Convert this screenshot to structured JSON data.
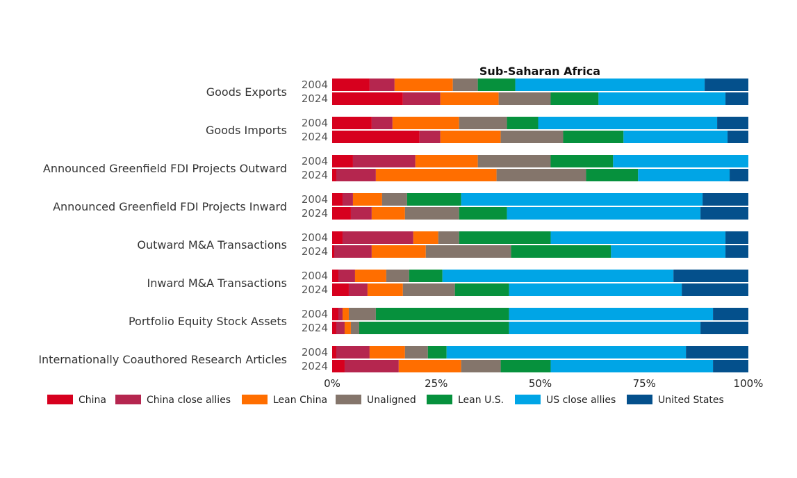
{
  "chart_data": {
    "type": "bar",
    "orientation": "horizontal",
    "stacked": "percent",
    "title": "Sub-Saharan Africa",
    "xlim": [
      0,
      100
    ],
    "x_ticks": [
      "0%",
      "25%",
      "50%",
      "75%",
      "100%"
    ],
    "grid": false,
    "legend_position": "bottom",
    "categories": [
      "Goods Exports",
      "Goods Imports",
      "Announced Greenfield FDI Projects Outward",
      "Announced Greenfield FDI Projects Inward",
      "Outward M&A Transactions",
      "Inward M&A Transactions",
      "Portfolio Equity Stock Assets",
      "Internationally Coauthored Research Articles"
    ],
    "years": [
      "2004",
      "2024"
    ],
    "series": [
      {
        "name": "China",
        "color": "#d7001e"
      },
      {
        "name": "China close allies",
        "color": "#b5264f"
      },
      {
        "name": "Lean China",
        "color": "#ff6e00"
      },
      {
        "name": "Unaligned",
        "color": "#84756b"
      },
      {
        "name": "Lean U.S.",
        "color": "#06913d"
      },
      {
        "name": "US close allies",
        "color": "#00a5e6"
      },
      {
        "name": "United States",
        "color": "#04508c"
      }
    ],
    "values": [
      [
        [
          9,
          6,
          14,
          6,
          9,
          45.5,
          10.5
        ],
        [
          17,
          9,
          14,
          12.5,
          11.5,
          30.5,
          5.5
        ]
      ],
      [
        [
          9.5,
          5,
          16,
          11.5,
          7.5,
          43,
          7.5
        ],
        [
          21,
          5,
          14.5,
          15,
          14.5,
          25,
          5
        ]
      ],
      [
        [
          5,
          15,
          15,
          17.5,
          15,
          32.5,
          0
        ],
        [
          1,
          9.5,
          29,
          21.5,
          12.5,
          22,
          4.5
        ]
      ],
      [
        [
          2.5,
          2.5,
          7,
          6,
          13,
          58,
          11
        ],
        [
          4.5,
          5,
          8,
          13,
          11.5,
          46.5,
          11.5
        ]
      ],
      [
        [
          2.5,
          17,
          6,
          5,
          22,
          42,
          5.5
        ],
        [
          0.5,
          9,
          13,
          20.5,
          24,
          27.5,
          5.5
        ]
      ],
      [
        [
          1.5,
          4,
          7.5,
          5.5,
          8,
          55.5,
          18
        ],
        [
          4,
          4.5,
          8.5,
          12.5,
          13,
          41.5,
          16
        ]
      ],
      [
        [
          1.5,
          1,
          1.5,
          6.5,
          32,
          49,
          8.5
        ],
        [
          1,
          2,
          1.5,
          2,
          36,
          46,
          11.5
        ]
      ],
      [
        [
          1,
          8,
          8.5,
          5.5,
          4.5,
          57.5,
          15
        ],
        [
          3,
          13,
          15,
          9.5,
          12,
          39,
          8.5
        ]
      ]
    ]
  }
}
